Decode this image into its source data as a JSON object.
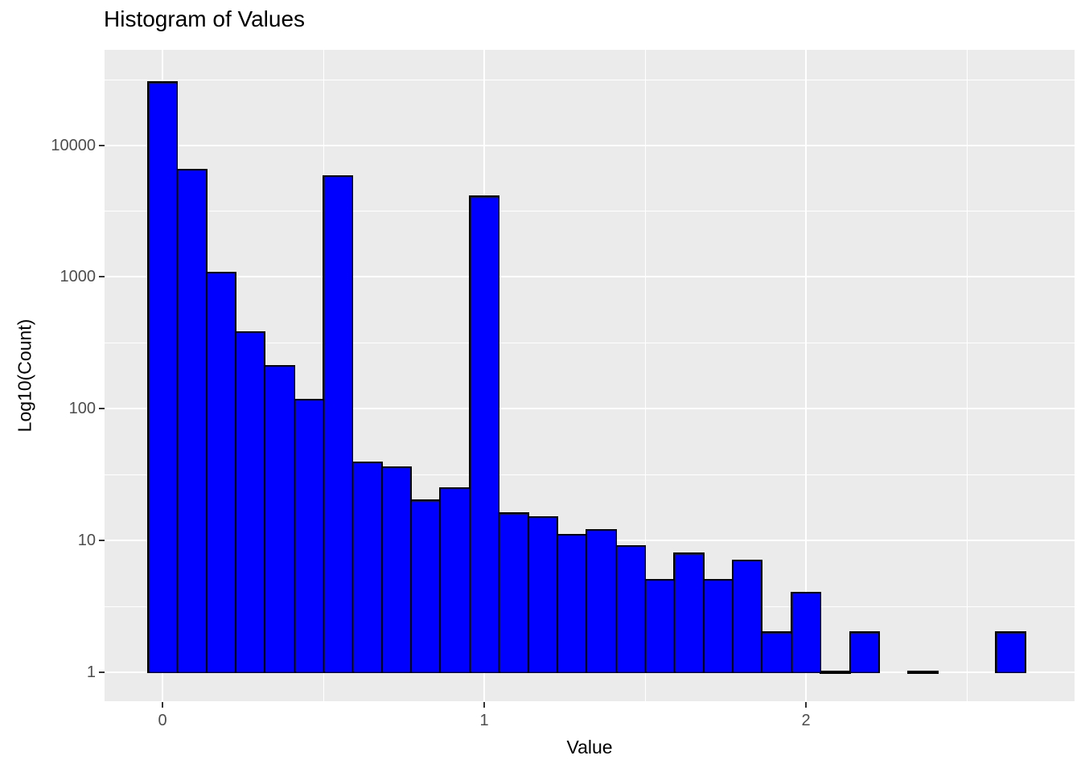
{
  "chart_data": {
    "type": "bar",
    "subtype": "histogram",
    "title": "Histogram of Values",
    "xlabel": "Value",
    "ylabel": "Log10(Count)",
    "y_scale": "log10",
    "xlim": [
      -0.18,
      2.835
    ],
    "ylim": [
      1,
      53000
    ],
    "x_ticks": [
      {
        "label": "0",
        "value": 0
      },
      {
        "label": "1",
        "value": 1
      },
      {
        "label": "2",
        "value": 2
      }
    ],
    "y_ticks": [
      {
        "label": "1",
        "value": 1
      },
      {
        "label": "10",
        "value": 10
      },
      {
        "label": "100",
        "value": 100
      },
      {
        "label": "1000",
        "value": 1000
      },
      {
        "label": "10000",
        "value": 10000
      }
    ],
    "x_minor_gridlines": [
      0.5,
      1.5,
      2.5
    ],
    "y_minor_gridlines_exponents": [
      0.5,
      1.5,
      2.5,
      3.5,
      4.5
    ],
    "bin_width": 0.091,
    "bin_centers": [
      0.0,
      0.091,
      0.182,
      0.273,
      0.364,
      0.455,
      0.545,
      0.636,
      0.727,
      0.818,
      0.909,
      1.0,
      1.091,
      1.182,
      1.273,
      1.364,
      1.455,
      1.545,
      1.636,
      1.727,
      1.818,
      1.909,
      2.0,
      2.091,
      2.182,
      2.273,
      2.364,
      2.455,
      2.545,
      2.636
    ],
    "counts": [
      30000,
      6500,
      1070,
      380,
      210,
      117,
      5800,
      39,
      36,
      20,
      25,
      4100,
      16,
      15,
      11,
      12,
      9,
      5,
      8,
      5,
      7,
      2,
      4,
      1,
      2,
      0,
      1,
      0,
      0,
      2
    ],
    "colors": {
      "bar_fill": "#0000FF",
      "bar_stroke": "#000000",
      "panel_background": "#EBEBEB",
      "gridline": "#FFFFFF",
      "tick_label": "#4D4D4D",
      "tick_mark": "#333333",
      "title": "#000000"
    },
    "grid": {
      "major": true,
      "minor": true
    },
    "legend": "none"
  }
}
